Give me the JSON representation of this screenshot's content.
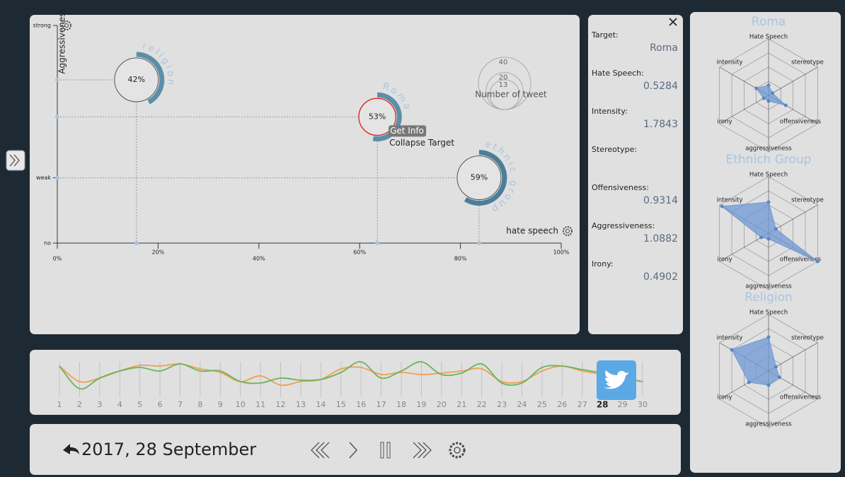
{
  "main": {
    "y_title": "Aggressiveness",
    "x_title": "hate speech",
    "xlim": [
      0,
      100
    ],
    "ylim": [
      0,
      1
    ],
    "xticks": [
      {
        "value": 0,
        "label": "0%"
      },
      {
        "value": 20,
        "label": "20%"
      },
      {
        "value": 40,
        "label": "40%"
      },
      {
        "value": 60,
        "label": "60%"
      },
      {
        "value": 80,
        "label": "80%"
      },
      {
        "value": 100,
        "label": "100%"
      }
    ],
    "yticks": [
      {
        "value": 0,
        "label": "no"
      },
      {
        "value": 0.3,
        "label": "weak"
      },
      {
        "value": 1,
        "label": "strong"
      }
    ],
    "bubbles": [
      {
        "name": "religion",
        "x": 15.7,
        "y": 0.75,
        "size": 28,
        "value": 42,
        "value_label": "42%",
        "color": "#5b8fa8"
      },
      {
        "name": "Roma",
        "x": 63.5,
        "y": 0.58,
        "size": 20,
        "value": 53,
        "value_label": "53%",
        "color": "#5b8fa8",
        "highlight_color": "#e02020"
      },
      {
        "name": "ethnic group",
        "x": 83.7,
        "y": 0.3,
        "size": 28,
        "value": 59,
        "value_label": "59%",
        "color": "#4b7f98"
      }
    ],
    "size_legend": {
      "title": "Number of tweet",
      "values": [
        40,
        20,
        13
      ]
    },
    "tooltip": {
      "items": [
        "Get Info",
        "Collapse Target"
      ]
    }
  },
  "info": {
    "fields": [
      {
        "label": "Target:",
        "value": "Roma"
      },
      {
        "label": "Hate Speech:",
        "value": 0.5284
      },
      {
        "label": "Intensity:",
        "value": 1.7843
      },
      {
        "label": "Stereotype:"
      },
      {
        "label": "Offensiveness:",
        "value": 0.9314
      },
      {
        "label": "Aggressiveness:",
        "value": 1.0882
      },
      {
        "label": "Irony:",
        "value": 0.4902
      }
    ]
  },
  "radar": {
    "axes": [
      "Hate Speech",
      "stereotype",
      "offensiveness",
      "aggressiveness",
      "irony",
      "intensity"
    ],
    "color": "#6f98d4",
    "charts": [
      {
        "title": "Roma",
        "values": [
          0.18,
          0.08,
          0.35,
          0.1,
          0.1,
          0.25
        ]
      },
      {
        "title": "Ethnich Group",
        "values": [
          0.55,
          0.15,
          1.0,
          0.1,
          0.15,
          0.95
        ]
      },
      {
        "title": "Religion",
        "values": [
          0.6,
          0.15,
          0.22,
          0.25,
          0.4,
          0.75
        ]
      }
    ]
  },
  "timeline": {
    "days": [
      1,
      2,
      3,
      4,
      5,
      6,
      7,
      8,
      9,
      10,
      11,
      12,
      13,
      14,
      15,
      16,
      17,
      18,
      19,
      20,
      21,
      22,
      23,
      24,
      25,
      26,
      27,
      28,
      29,
      30
    ],
    "selected": 28,
    "series": [
      {
        "color": "#f0a050",
        "values": [
          0.74,
          0.3,
          0.4,
          0.6,
          0.76,
          0.74,
          0.8,
          0.66,
          0.56,
          0.3,
          0.46,
          0.2,
          0.3,
          0.36,
          0.66,
          0.7,
          0.5,
          0.56,
          0.5,
          0.54,
          0.6,
          0.66,
          0.3,
          0.3,
          0.6,
          0.74,
          0.6,
          0.5,
          0.4,
          0.3
        ]
      },
      {
        "color": "#6cb35a",
        "values": [
          0.74,
          0.1,
          0.4,
          0.6,
          0.7,
          0.6,
          0.8,
          0.6,
          0.6,
          0.3,
          0.26,
          0.4,
          0.34,
          0.36,
          0.56,
          0.86,
          0.4,
          0.6,
          0.86,
          0.5,
          0.54,
          0.8,
          0.26,
          0.26,
          0.7,
          0.74,
          0.64,
          0.54,
          0.4,
          0.3
        ]
      }
    ]
  },
  "controls": {
    "date": "2017, 28 September"
  }
}
